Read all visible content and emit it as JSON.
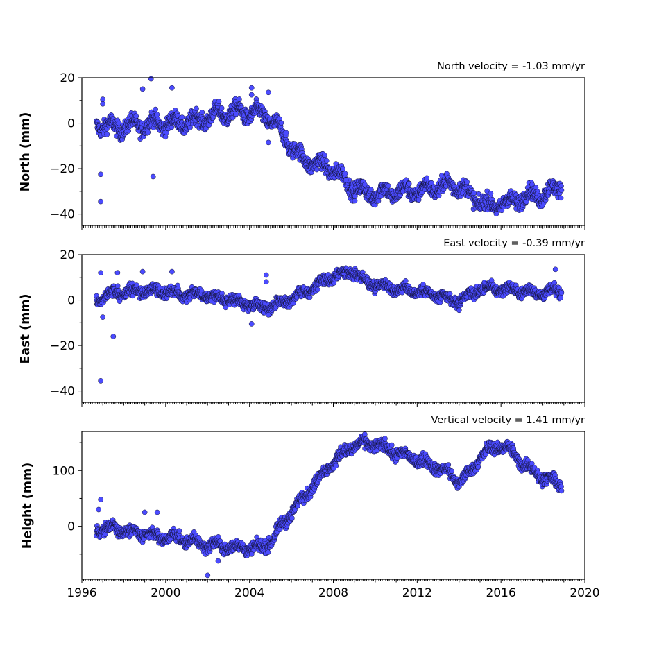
{
  "chart_data": [
    {
      "type": "scatter",
      "title": "North velocity = -1.03 mm/yr",
      "ylabel": "North (mm)",
      "xlim": [
        1996,
        2020
      ],
      "ylim": [
        -45,
        20
      ],
      "yticks": [
        20,
        0,
        -20,
        -40
      ],
      "ytick_labels": [
        "20",
        "0",
        "−20",
        "−40"
      ],
      "xticks": [
        1996,
        2000,
        2004,
        2008,
        2012,
        2016,
        2020
      ],
      "xtick_labels": [],
      "trend": [
        [
          1996.7,
          0
        ],
        [
          1997.5,
          -2
        ],
        [
          1998.5,
          -1
        ],
        [
          1999.5,
          0
        ],
        [
          2000.5,
          0
        ],
        [
          2001.5,
          1
        ],
        [
          2002.5,
          4
        ],
        [
          2003.5,
          5
        ],
        [
          2004.5,
          4
        ],
        [
          2005.0,
          2
        ],
        [
          2005.5,
          -4
        ],
        [
          2006.0,
          -10
        ],
        [
          2006.5,
          -16
        ],
        [
          2007.0,
          -17
        ],
        [
          2007.5,
          -19
        ],
        [
          2008.0,
          -20
        ],
        [
          2008.5,
          -25
        ],
        [
          2009.0,
          -28
        ],
        [
          2009.5,
          -31
        ],
        [
          2010.0,
          -31
        ],
        [
          2011.0,
          -30
        ],
        [
          2012.0,
          -30
        ],
        [
          2013.0,
          -28
        ],
        [
          2014.0,
          -27
        ],
        [
          2014.5,
          -32
        ],
        [
          2015.0,
          -34
        ],
        [
          2015.5,
          -37
        ],
        [
          2016.0,
          -35
        ],
        [
          2016.5,
          -35
        ],
        [
          2017.0,
          -32
        ],
        [
          2017.5,
          -32
        ],
        [
          2018.0,
          -31
        ],
        [
          2018.5,
          -30
        ],
        [
          2018.9,
          -27
        ]
      ],
      "scatter_sd": 2.4,
      "wiggle_amp": 2.5,
      "outliers": [
        [
          1996.9,
          -34.5
        ],
        [
          1996.9,
          -22.5
        ],
        [
          1997.0,
          10.5
        ],
        [
          1997.0,
          8.5
        ],
        [
          1998.9,
          15
        ],
        [
          1999.3,
          19.5
        ],
        [
          1999.4,
          -23.5
        ],
        [
          2000.3,
          15.5
        ],
        [
          2004.1,
          15.5
        ],
        [
          2004.1,
          12.5
        ],
        [
          2004.9,
          13.5
        ],
        [
          2004.9,
          -8.5
        ],
        [
          2008.6,
          -25
        ],
        [
          2009.5,
          -27
        ]
      ]
    },
    {
      "type": "scatter",
      "title": "East velocity = -0.39 mm/yr",
      "ylabel": "East (mm)",
      "xlim": [
        1996,
        2020
      ],
      "ylim": [
        -45,
        20
      ],
      "yticks": [
        20,
        0,
        -20,
        -40
      ],
      "ytick_labels": [
        "20",
        "0",
        "−20",
        "−40"
      ],
      "xticks": [
        1996,
        2000,
        2004,
        2008,
        2012,
        2016,
        2020
      ],
      "xtick_labels": [],
      "trend": [
        [
          1996.7,
          0
        ],
        [
          1997.5,
          3
        ],
        [
          1998.5,
          4
        ],
        [
          1999.5,
          4
        ],
        [
          2000.5,
          3
        ],
        [
          2001.5,
          3
        ],
        [
          2002.5,
          1
        ],
        [
          2003.5,
          -1
        ],
        [
          2004.5,
          -3
        ],
        [
          2005.0,
          -3
        ],
        [
          2005.5,
          -1
        ],
        [
          2006.0,
          1
        ],
        [
          2006.5,
          3
        ],
        [
          2007.0,
          5
        ],
        [
          2007.5,
          8
        ],
        [
          2008.0,
          10
        ],
        [
          2008.5,
          11
        ],
        [
          2008.9,
          13
        ],
        [
          2009.5,
          8
        ],
        [
          2010.0,
          7
        ],
        [
          2011.0,
          5
        ],
        [
          2012.0,
          4
        ],
        [
          2013.0,
          2
        ],
        [
          2013.5,
          0
        ],
        [
          2014.0,
          0
        ],
        [
          2014.5,
          2
        ],
        [
          2015.0,
          5
        ],
        [
          2015.5,
          5
        ],
        [
          2016.0,
          5
        ],
        [
          2017.0,
          4
        ],
        [
          2018.0,
          3
        ],
        [
          2018.9,
          4
        ]
      ],
      "scatter_sd": 1.6,
      "wiggle_amp": 1.2,
      "outliers": [
        [
          1996.9,
          -35.5
        ],
        [
          1996.9,
          12
        ],
        [
          1997.0,
          -7.5
        ],
        [
          1997.5,
          -16
        ],
        [
          1997.7,
          12
        ],
        [
          1998.9,
          12.5
        ],
        [
          2000.3,
          12.5
        ],
        [
          2004.1,
          -10.5
        ],
        [
          2004.8,
          11
        ],
        [
          2004.8,
          8
        ],
        [
          2004.9,
          -6.5
        ],
        [
          2018.6,
          13.5
        ],
        [
          2014.0,
          -4.5
        ]
      ]
    },
    {
      "type": "scatter",
      "title": "Vertical velocity = 1.41 mm/yr",
      "ylabel": "Height (mm)",
      "xlim": [
        1996,
        2020
      ],
      "ylim": [
        -95,
        170
      ],
      "yticks": [
        100,
        0
      ],
      "ytick_labels": [
        "100",
        "0"
      ],
      "xticks": [
        1996,
        2000,
        2004,
        2008,
        2012,
        2016,
        2020
      ],
      "xtick_labels": [
        "1996",
        "2000",
        "2004",
        "2008",
        "2012",
        "2016",
        "2020"
      ],
      "trend": [
        [
          1996.7,
          -5
        ],
        [
          1997.5,
          -3
        ],
        [
          1998.5,
          -10
        ],
        [
          1999.5,
          -18
        ],
        [
          2000.5,
          -20
        ],
        [
          2001.5,
          -30
        ],
        [
          2002.5,
          -35
        ],
        [
          2003.5,
          -38
        ],
        [
          2004.5,
          -40
        ],
        [
          2005.2,
          -20
        ],
        [
          2005.5,
          0
        ],
        [
          2006.0,
          25
        ],
        [
          2006.5,
          50
        ],
        [
          2007.0,
          72
        ],
        [
          2007.5,
          95
        ],
        [
          2008.0,
          115
        ],
        [
          2008.5,
          132
        ],
        [
          2009.0,
          145
        ],
        [
          2009.5,
          148
        ],
        [
          2010.0,
          148
        ],
        [
          2010.5,
          140
        ],
        [
          2011.0,
          132
        ],
        [
          2012.0,
          120
        ],
        [
          2013.0,
          105
        ],
        [
          2013.5,
          95
        ],
        [
          2014.0,
          80
        ],
        [
          2014.5,
          95
        ],
        [
          2015.0,
          125
        ],
        [
          2015.5,
          138
        ],
        [
          2016.0,
          145
        ],
        [
          2016.5,
          135
        ],
        [
          2017.0,
          115
        ],
        [
          2017.5,
          100
        ],
        [
          2018.0,
          88
        ],
        [
          2018.5,
          80
        ],
        [
          2018.9,
          75
        ]
      ],
      "scatter_sd": 7,
      "wiggle_amp": 6,
      "outliers": [
        [
          1996.9,
          48
        ],
        [
          1996.8,
          30
        ],
        [
          1999.0,
          25
        ],
        [
          1999.6,
          25
        ],
        [
          2002.0,
          -88
        ],
        [
          2002.5,
          -62
        ],
        [
          2004.1,
          -50
        ]
      ]
    }
  ]
}
